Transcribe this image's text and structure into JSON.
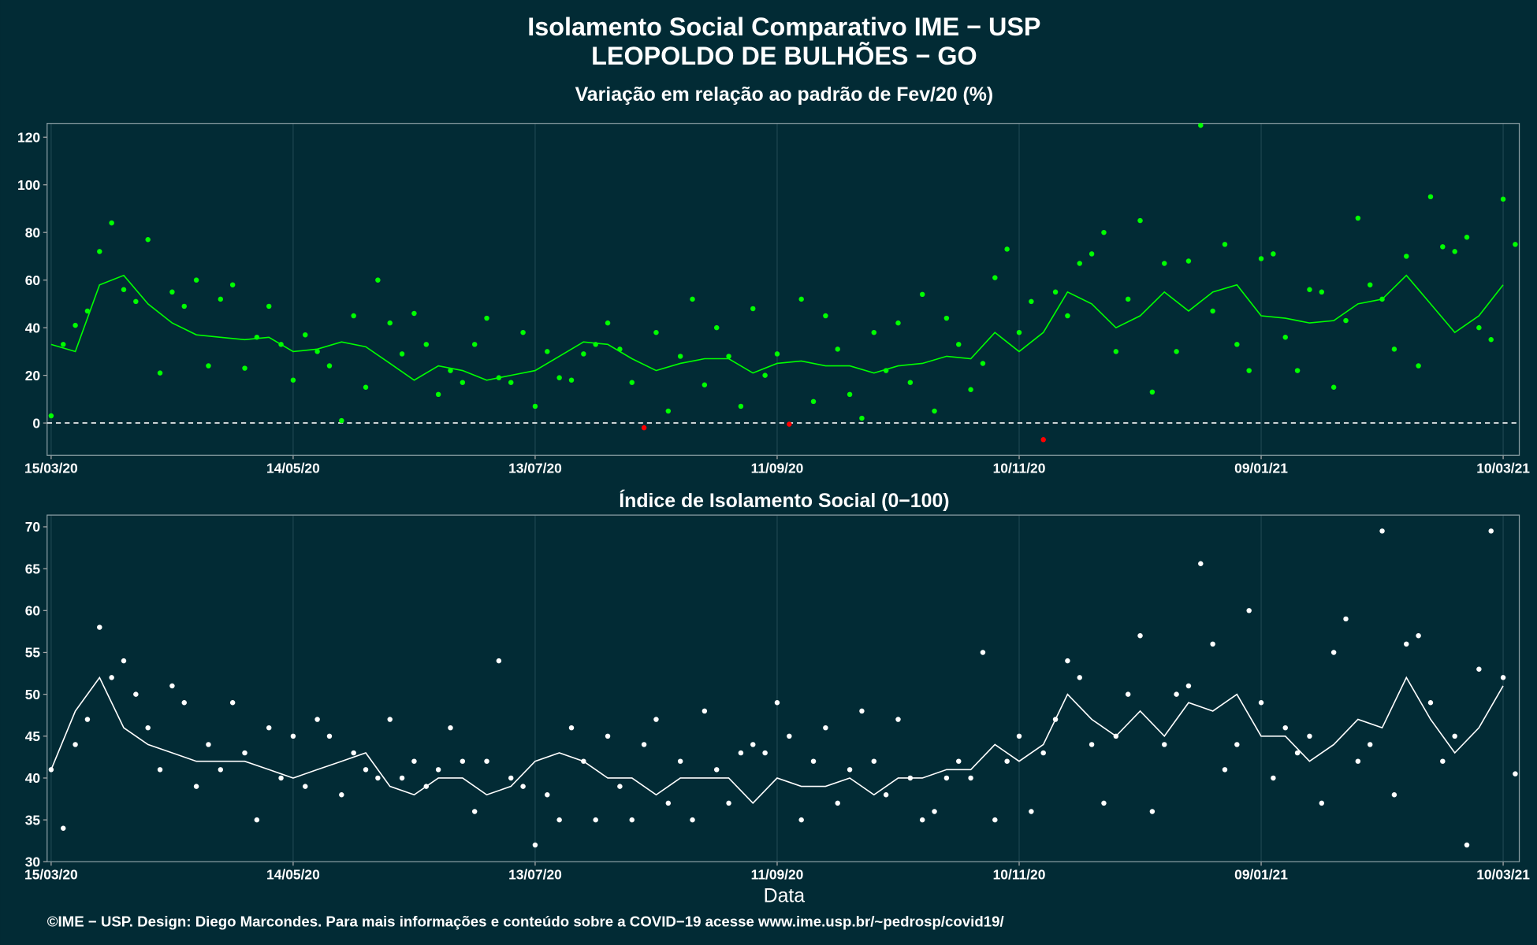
{
  "title": "Isolamento Social Comparativo IME − USP",
  "subtitle": "LEOPOLDO DE BULHÕES − GO",
  "footer": "©IME − USP. Design: Diego Marcondes. Para mais informações e conteúdo sobre a COVID−19 acesse www.ime.usp.br/~pedrosp/covid19/",
  "chart_data": [
    {
      "type": "scatter",
      "title": "Variação em relação ao padrão de Fev/20 (%)",
      "xlim": [
        -1,
        364
      ],
      "ylim": [
        -13.6,
        125.8
      ],
      "xticks": [
        {
          "value": 0,
          "label": "15/03/20"
        },
        {
          "value": 60,
          "label": "14/05/20"
        },
        {
          "value": 120,
          "label": "13/07/20"
        },
        {
          "value": 180,
          "label": "11/09/20"
        },
        {
          "value": 240,
          "label": "10/11/20"
        },
        {
          "value": 300,
          "label": "09/01/21"
        },
        {
          "value": 360,
          "label": "10/03/21"
        }
      ],
      "yticks": [
        0,
        20,
        40,
        60,
        80,
        100,
        120
      ],
      "hline": 0,
      "grid": true,
      "series": [
        {
          "color": "#00ff00",
          "negative_color": "#ff0000",
          "x": [
            0,
            3,
            6,
            9,
            12,
            15,
            18,
            21,
            24,
            27,
            30,
            33,
            36,
            39,
            42,
            45,
            48,
            51,
            54,
            57,
            60,
            63,
            66,
            69,
            72,
            75,
            78,
            81,
            84,
            87,
            90,
            93,
            96,
            99,
            102,
            105,
            108,
            111,
            114,
            117,
            120,
            123,
            126,
            129,
            132,
            135,
            138,
            141,
            144,
            147,
            150,
            153,
            156,
            159,
            162,
            165,
            168,
            171,
            174,
            177,
            180,
            183,
            186,
            189,
            192,
            195,
            198,
            201,
            204,
            207,
            210,
            213,
            216,
            219,
            222,
            225,
            228,
            231,
            234,
            237,
            240,
            243,
            246,
            249,
            252,
            255,
            258,
            261,
            264,
            267,
            270,
            273,
            276,
            279,
            282,
            285,
            288,
            291,
            294,
            297,
            300,
            303,
            306,
            309,
            312,
            315,
            318,
            321,
            324,
            327,
            330,
            333,
            336,
            339,
            342,
            345,
            348,
            351,
            354,
            357,
            360,
            363
          ],
          "values": [
            3,
            33,
            41,
            47,
            72,
            84,
            56,
            51,
            77,
            21,
            55,
            49,
            60,
            24,
            52,
            58,
            23,
            36,
            49,
            33,
            18,
            37,
            30,
            24,
            1,
            45,
            15,
            60,
            42,
            29,
            46,
            33,
            12,
            22,
            17,
            33,
            44,
            19,
            17,
            38,
            7,
            30,
            19,
            18,
            29,
            33,
            42,
            31,
            17,
            -2,
            38,
            5,
            28,
            52,
            16,
            40,
            28,
            7,
            48,
            20,
            29,
            -0.5,
            52,
            9,
            45,
            31,
            12,
            2,
            38,
            22,
            42,
            17,
            54,
            5,
            44,
            33,
            14,
            25,
            61,
            73,
            38,
            51,
            -7,
            55,
            45,
            67,
            71,
            80,
            30,
            52,
            85,
            13,
            67,
            30,
            68,
            125,
            47,
            75,
            33,
            22,
            69,
            71,
            36,
            22,
            56,
            55,
            15,
            43,
            86,
            58,
            52,
            31,
            70,
            24,
            95,
            74,
            72,
            78,
            40,
            35,
            94,
            75
          ]
        },
        {
          "type": "line",
          "color": "#00ff00",
          "x": [
            0,
            6,
            12,
            18,
            24,
            30,
            36,
            42,
            48,
            54,
            60,
            66,
            72,
            78,
            84,
            90,
            96,
            102,
            108,
            114,
            120,
            126,
            132,
            138,
            144,
            150,
            156,
            162,
            168,
            174,
            180,
            186,
            192,
            198,
            204,
            210,
            216,
            222,
            228,
            234,
            240,
            246,
            252,
            258,
            264,
            270,
            276,
            282,
            288,
            294,
            300,
            306,
            312,
            318,
            324,
            330,
            336,
            342,
            348,
            354,
            360
          ],
          "values": [
            33,
            30,
            58,
            62,
            50,
            42,
            37,
            36,
            35,
            36,
            30,
            31,
            34,
            32,
            25,
            18,
            24,
            22,
            18,
            20,
            22,
            28,
            34,
            33,
            27,
            22,
            25,
            27,
            27,
            21,
            25,
            26,
            24,
            24,
            21,
            24,
            25,
            28,
            27,
            38,
            30,
            38,
            55,
            50,
            40,
            45,
            55,
            47,
            55,
            58,
            45,
            44,
            42,
            43,
            50,
            52,
            62,
            50,
            38,
            45,
            58
          ]
        }
      ]
    },
    {
      "type": "scatter",
      "title": "Índice de Isolamento Social (0−100)",
      "xlabel": "Data",
      "xlim": [
        -1,
        364
      ],
      "ylim": [
        30,
        71.4
      ],
      "xticks": [
        {
          "value": 0,
          "label": "15/03/20"
        },
        {
          "value": 60,
          "label": "14/05/20"
        },
        {
          "value": 120,
          "label": "13/07/20"
        },
        {
          "value": 180,
          "label": "11/09/20"
        },
        {
          "value": 240,
          "label": "10/11/20"
        },
        {
          "value": 300,
          "label": "09/01/21"
        },
        {
          "value": 360,
          "label": "10/03/21"
        }
      ],
      "yticks": [
        30,
        35,
        40,
        45,
        50,
        55,
        60,
        65,
        70
      ],
      "grid": true,
      "series": [
        {
          "color": "#ffffff",
          "x": [
            0,
            3,
            6,
            9,
            12,
            15,
            18,
            21,
            24,
            27,
            30,
            33,
            36,
            39,
            42,
            45,
            48,
            51,
            54,
            57,
            60,
            63,
            66,
            69,
            72,
            75,
            78,
            81,
            84,
            87,
            90,
            93,
            96,
            99,
            102,
            105,
            108,
            111,
            114,
            117,
            120,
            123,
            126,
            129,
            132,
            135,
            138,
            141,
            144,
            147,
            150,
            153,
            156,
            159,
            162,
            165,
            168,
            171,
            174,
            177,
            180,
            183,
            186,
            189,
            192,
            195,
            198,
            201,
            204,
            207,
            210,
            213,
            216,
            219,
            222,
            225,
            228,
            231,
            234,
            237,
            240,
            243,
            246,
            249,
            252,
            255,
            258,
            261,
            264,
            267,
            270,
            273,
            276,
            279,
            282,
            285,
            288,
            291,
            294,
            297,
            300,
            303,
            306,
            309,
            312,
            315,
            318,
            321,
            324,
            327,
            330,
            333,
            336,
            339,
            342,
            345,
            348,
            351,
            354,
            357,
            360,
            363
          ],
          "values": [
            41,
            34,
            44,
            47,
            58,
            52,
            54,
            50,
            46,
            41,
            51,
            49,
            39,
            44,
            41,
            49,
            43,
            35,
            46,
            40,
            45,
            39,
            47,
            45,
            38,
            43,
            41,
            40,
            47,
            40,
            42,
            39,
            41,
            46,
            42,
            36,
            42,
            54,
            40,
            39,
            32,
            38,
            35,
            46,
            42,
            35,
            45,
            39,
            35,
            44,
            47,
            37,
            42,
            35,
            48,
            41,
            37,
            43,
            44,
            43,
            49,
            45,
            35,
            42,
            46,
            37,
            41,
            48,
            42,
            38,
            47,
            40,
            35,
            36,
            40,
            42,
            40,
            55,
            35,
            42,
            45,
            36,
            43,
            47,
            54,
            52,
            44,
            37,
            45,
            50,
            57,
            36,
            44,
            50,
            51,
            65.6,
            56,
            41,
            44,
            60,
            49,
            40,
            46,
            43,
            45,
            37,
            55,
            59,
            42,
            44,
            69.5,
            38,
            56,
            57,
            49,
            42,
            45,
            32,
            53,
            69.5,
            52,
            40.5
          ]
        },
        {
          "type": "line",
          "color": "#ffffff",
          "x": [
            0,
            6,
            12,
            18,
            24,
            30,
            36,
            42,
            48,
            54,
            60,
            66,
            72,
            78,
            84,
            90,
            96,
            102,
            108,
            114,
            120,
            126,
            132,
            138,
            144,
            150,
            156,
            162,
            168,
            174,
            180,
            186,
            192,
            198,
            204,
            210,
            216,
            222,
            228,
            234,
            240,
            246,
            252,
            258,
            264,
            270,
            276,
            282,
            288,
            294,
            300,
            306,
            312,
            318,
            324,
            330,
            336,
            342,
            348,
            354,
            360
          ],
          "values": [
            41,
            48,
            52,
            46,
            44,
            43,
            42,
            42,
            42,
            41,
            40,
            41,
            42,
            43,
            39,
            38,
            40,
            40,
            38,
            39,
            42,
            43,
            42,
            40,
            40,
            38,
            40,
            40,
            40,
            37,
            40,
            39,
            39,
            40,
            38,
            40,
            40,
            41,
            41,
            44,
            42,
            44,
            50,
            47,
            45,
            48,
            45,
            49,
            48,
            50,
            45,
            45,
            42,
            44,
            47,
            46,
            52,
            47,
            43,
            46,
            51
          ]
        }
      ]
    }
  ]
}
